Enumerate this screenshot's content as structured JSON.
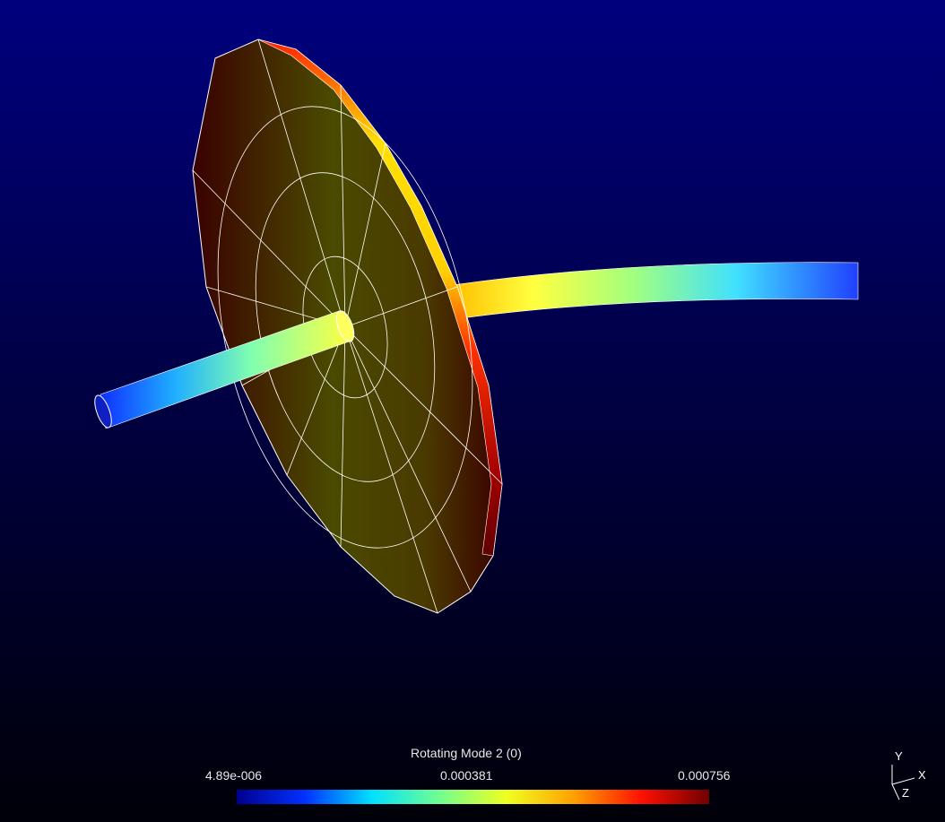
{
  "legend": {
    "title": "Rotating Mode 2 (0)",
    "min_label": "4.89e-006",
    "mid_label": "0.000381",
    "max_label": "0.000756",
    "colormap": [
      "#00008f",
      "#0030ff",
      "#00e0ff",
      "#70ff90",
      "#f0ff20",
      "#ffa000",
      "#ff1000",
      "#700000"
    ]
  },
  "triad": {
    "x": "X",
    "y": "Y",
    "z": "Z"
  },
  "colors": {
    "background_top": "#00007e",
    "background_bottom": "#000008",
    "mesh_lines": "#ffffff"
  }
}
